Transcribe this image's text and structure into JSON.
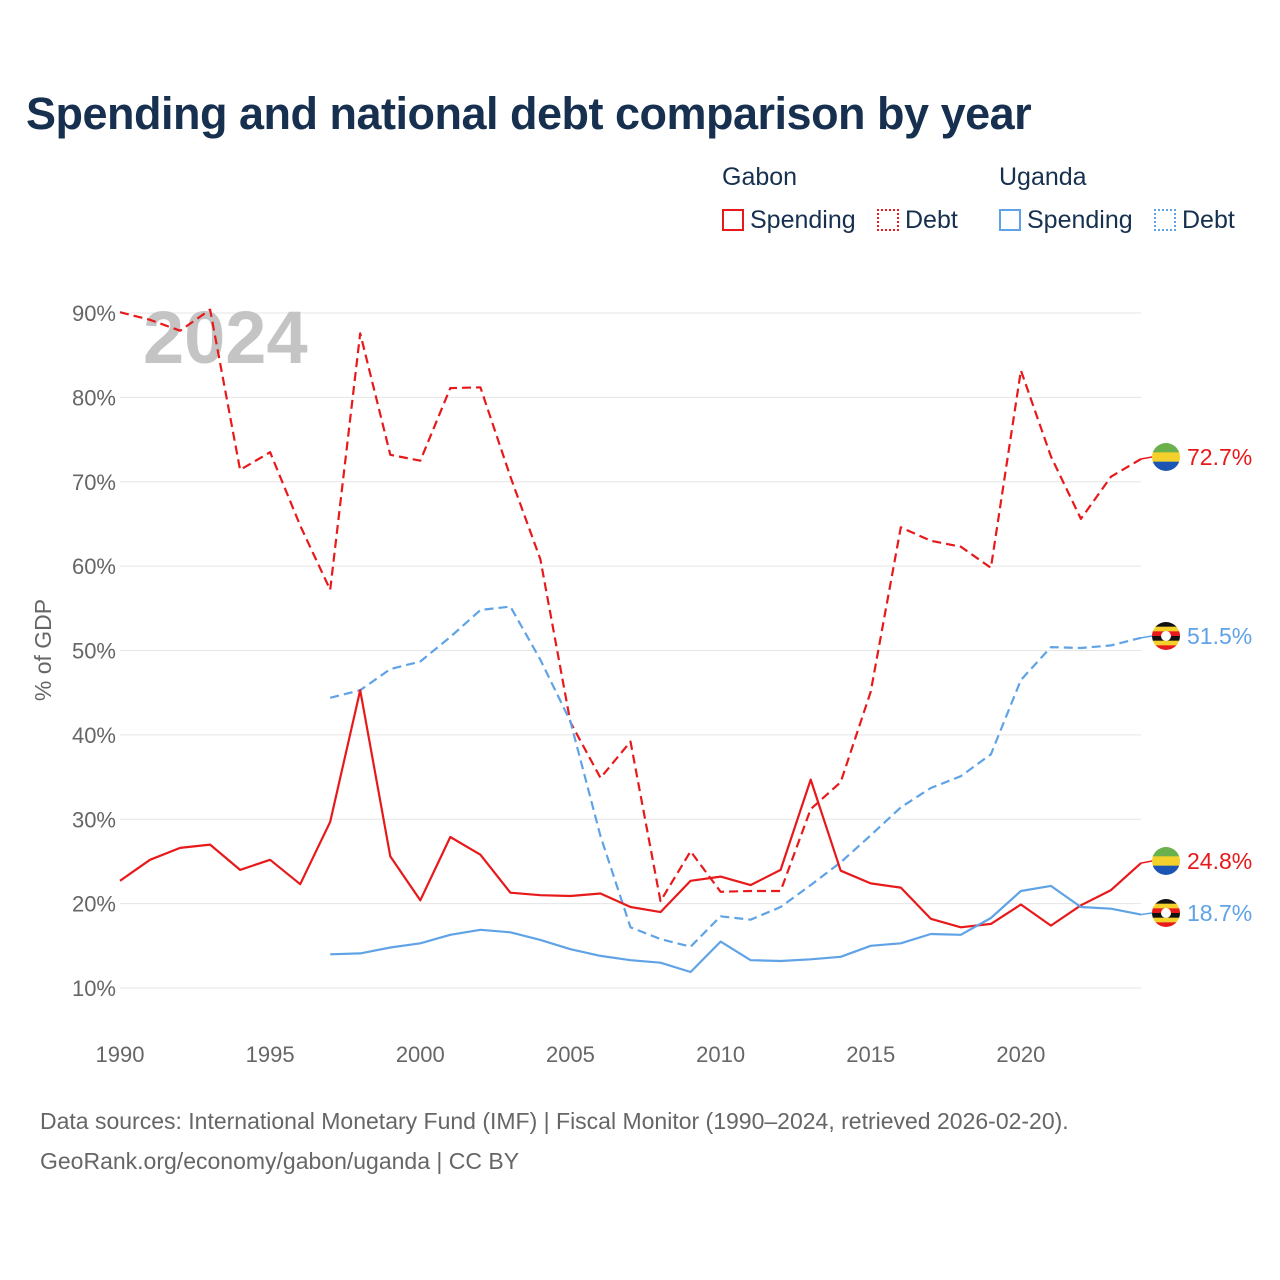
{
  "title": "Spending and national debt comparison by year",
  "legend": {
    "groups": [
      {
        "name": "Gabon",
        "items": [
          {
            "label": "Spending",
            "style": "solid",
            "color": "#e8191a"
          },
          {
            "label": "Debt",
            "style": "dotted",
            "color": "#e8191a"
          }
        ]
      },
      {
        "name": "Uganda",
        "items": [
          {
            "label": "Spending",
            "style": "solid",
            "color": "#5fa3e6"
          },
          {
            "label": "Debt",
            "style": "dotted",
            "color": "#5fa3e6"
          }
        ]
      }
    ]
  },
  "year_label": "2024",
  "sources": {
    "line1": "Data sources: International Monetary Fund (IMF) | Fiscal Monitor (1990–2024, retrieved 2026-02-20).",
    "line2": "GeoRank.org/economy/gabon/uganda | CC BY"
  },
  "colors": {
    "gabon": "#e8191a",
    "uganda": "#5fa3e6",
    "title": "#17304f",
    "axis_text": "#666666",
    "grid": "#e5e5e5"
  },
  "chart_data": {
    "type": "line",
    "title": "Spending and national debt comparison by year",
    "xlabel": "",
    "ylabel": "% of GDP",
    "xlim": [
      1990,
      2024
    ],
    "ylim": [
      5,
      90
    ],
    "x_ticks": [
      1990,
      1995,
      2000,
      2005,
      2010,
      2015,
      2020
    ],
    "x_tick_labels": [
      "1990",
      "1995",
      "2000",
      "2005",
      "2010",
      "2015",
      "2020"
    ],
    "y_ticks": [
      10,
      20,
      30,
      40,
      50,
      60,
      70,
      80,
      90
    ],
    "y_tick_labels": [
      "10%",
      "20%",
      "30%",
      "40%",
      "50%",
      "60%",
      "70%",
      "80%",
      "90%"
    ],
    "grid": true,
    "legend_position": "top-right",
    "series": [
      {
        "name": "Gabon Debt",
        "country": "Gabon",
        "style": "dashed",
        "end_label": "72.7%",
        "x": [
          1990,
          1991,
          1992,
          1993,
          1994,
          1995,
          1996,
          1997,
          1998,
          1999,
          2000,
          2001,
          2002,
          2003,
          2004,
          2005,
          2006,
          2007,
          2008,
          2009,
          2010,
          2011,
          2012,
          2013,
          2014,
          2015,
          2016,
          2017,
          2018,
          2019,
          2020,
          2021,
          2022,
          2023,
          2024
        ],
        "values": [
          90.1,
          89.2,
          87.9,
          90.4,
          71.4,
          73.5,
          64.8,
          57.2,
          87.6,
          73.2,
          72.5,
          81.1,
          81.2,
          70.6,
          60.8,
          41.5,
          34.9,
          39.2,
          20.3,
          26.2,
          21.4,
          21.5,
          21.5,
          31.2,
          34.4,
          45.1,
          64.6,
          63.0,
          62.3,
          59.8,
          83.2,
          73.0,
          65.6,
          70.6,
          72.7
        ]
      },
      {
        "name": "Uganda Debt",
        "country": "Uganda",
        "style": "dashed",
        "end_label": "51.5%",
        "x": [
          1997,
          1998,
          1999,
          2000,
          2001,
          2002,
          2003,
          2004,
          2005,
          2006,
          2007,
          2008,
          2009,
          2010,
          2011,
          2012,
          2013,
          2014,
          2015,
          2016,
          2017,
          2018,
          2019,
          2020,
          2021,
          2022,
          2023,
          2024
        ],
        "values": [
          44.4,
          45.3,
          47.8,
          48.7,
          51.6,
          54.8,
          55.2,
          48.9,
          41.6,
          28.0,
          17.2,
          15.8,
          14.9,
          18.5,
          18.1,
          19.6,
          22.2,
          24.9,
          28.1,
          31.4,
          33.7,
          35.1,
          37.7,
          46.5,
          50.4,
          50.3,
          50.6,
          51.5
        ]
      },
      {
        "name": "Gabon Spending",
        "country": "Gabon",
        "style": "solid",
        "end_label": "24.8%",
        "x": [
          1990,
          1991,
          1992,
          1993,
          1994,
          1995,
          1996,
          1997,
          1998,
          1999,
          2000,
          2001,
          2002,
          2003,
          2004,
          2005,
          2006,
          2007,
          2008,
          2009,
          2010,
          2011,
          2012,
          2013,
          2014,
          2015,
          2016,
          2017,
          2018,
          2019,
          2020,
          2021,
          2022,
          2023,
          2024
        ],
        "values": [
          22.7,
          25.2,
          26.6,
          27.0,
          24.0,
          25.2,
          22.3,
          29.7,
          45.3,
          25.6,
          20.4,
          27.9,
          25.8,
          21.3,
          21.0,
          20.9,
          21.2,
          19.6,
          19.0,
          22.7,
          23.2,
          22.2,
          24.0,
          34.7,
          23.9,
          22.4,
          21.9,
          18.2,
          17.2,
          17.6,
          19.9,
          17.4,
          19.8,
          21.6,
          24.8
        ]
      },
      {
        "name": "Uganda Spending",
        "country": "Uganda",
        "style": "solid",
        "end_label": "18.7%",
        "x": [
          1997,
          1998,
          1999,
          2000,
          2001,
          2002,
          2003,
          2004,
          2005,
          2006,
          2007,
          2008,
          2009,
          2010,
          2011,
          2012,
          2013,
          2014,
          2015,
          2016,
          2017,
          2018,
          2019,
          2020,
          2021,
          2022,
          2023,
          2024
        ],
        "values": [
          14.0,
          14.1,
          14.8,
          15.3,
          16.3,
          16.9,
          16.6,
          15.7,
          14.6,
          13.8,
          13.3,
          13.0,
          11.9,
          15.5,
          13.3,
          13.2,
          13.4,
          13.7,
          15.0,
          15.3,
          16.4,
          16.3,
          18.3,
          21.5,
          22.1,
          19.6,
          19.4,
          18.7
        ]
      }
    ]
  }
}
